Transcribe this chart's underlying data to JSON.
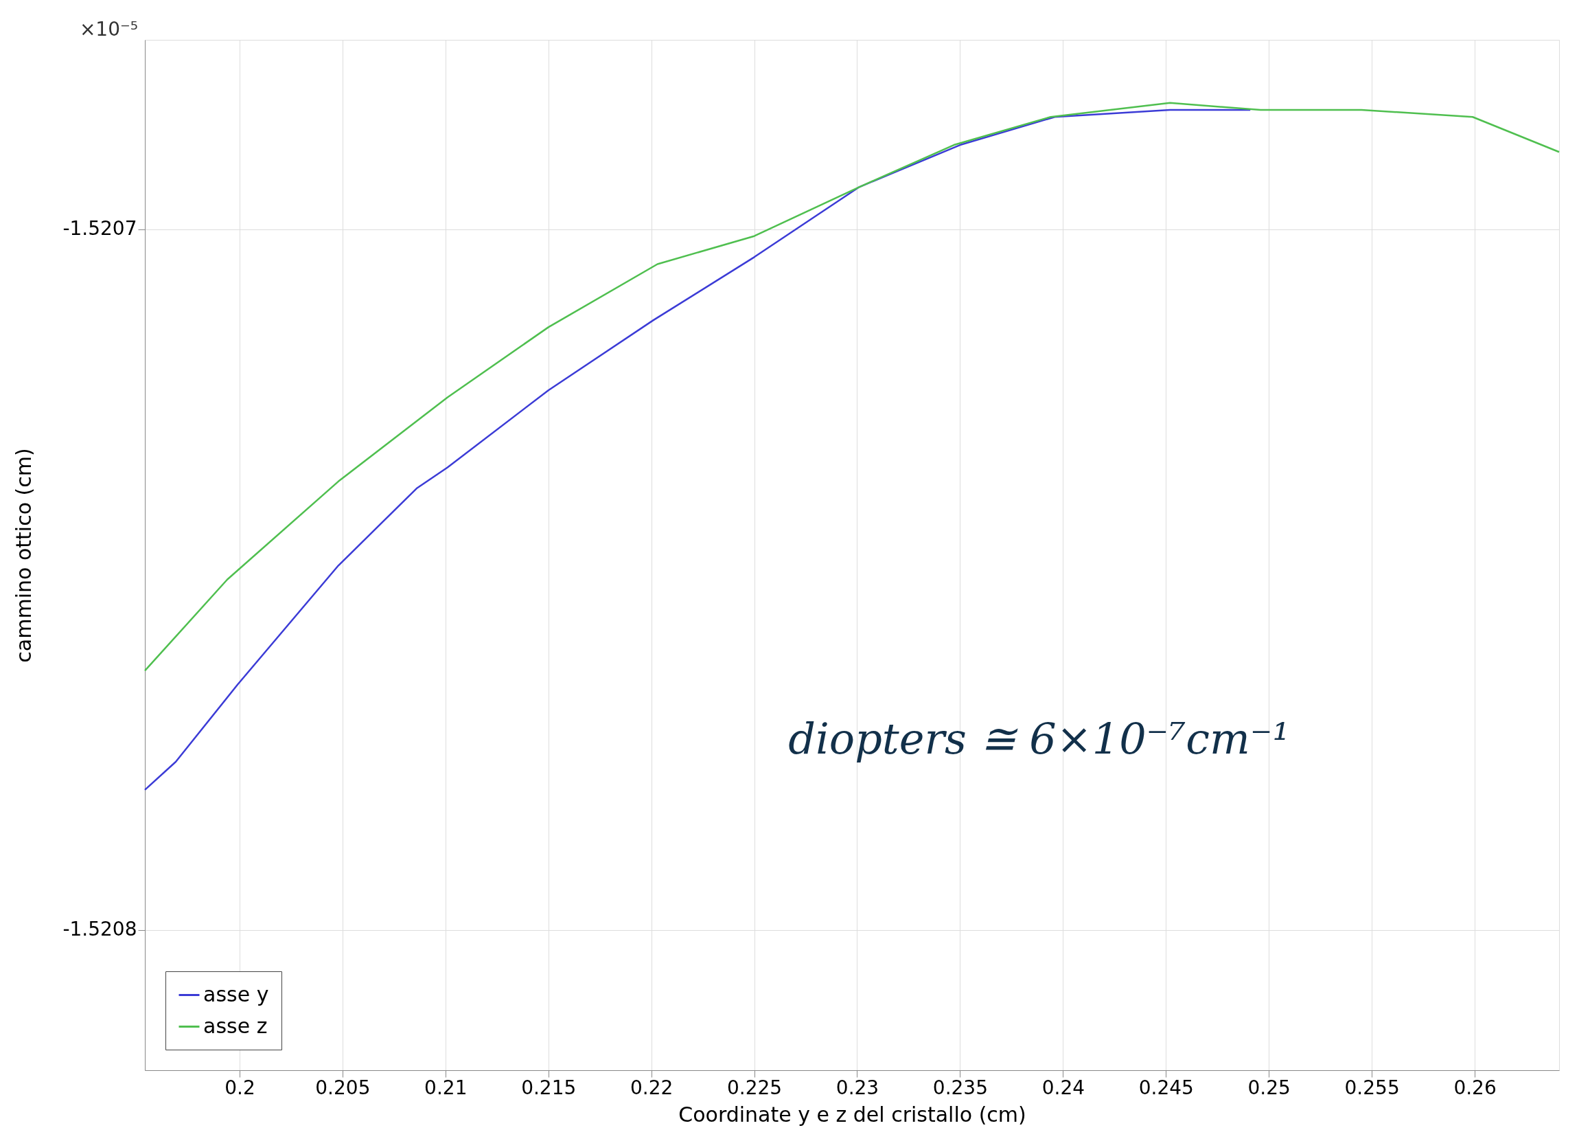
{
  "chart_data": {
    "type": "line",
    "xlabel": "Coordinate y e z del cristallo (cm)",
    "ylabel": "cammino ottico (cm)",
    "annotations": [
      "×10⁻⁵",
      "diopters ≅ 6×10⁻⁷cm⁻¹"
    ],
    "xlim": [
      0.1954,
      0.2641
    ],
    "xticks": [
      0.2,
      0.205,
      0.21,
      0.215,
      0.22,
      0.225,
      0.23,
      0.235,
      0.24,
      0.245,
      0.25,
      0.255,
      0.26
    ],
    "ylim": [
      -1.52082,
      -1.520673
    ],
    "yticks": [
      -1.5207,
      -1.5208
    ],
    "grid": true,
    "legend": "bottom left",
    "marker": "none",
    "line_style": "solid",
    "series": [
      {
        "name": "asse y",
        "color": "#3b3bd6",
        "x": [
          0.1954,
          0.1969,
          0.1999,
          0.2048,
          0.2086,
          0.2101,
          0.215,
          0.2201,
          0.225,
          0.2301,
          0.235,
          0.2396,
          0.2452,
          0.2491
        ],
        "values": [
          -1.52078,
          -1.520776,
          -1.520765,
          -1.520748,
          -1.520737,
          -1.520734,
          -1.520723,
          -1.520713,
          -1.520704,
          -1.520694,
          -1.520688,
          -1.520684,
          -1.520683,
          -1.520683
        ]
      },
      {
        "name": "asse z",
        "color": "#4fbf4f",
        "x": [
          0.1954,
          0.1994,
          0.2048,
          0.2101,
          0.215,
          0.2203,
          0.225,
          0.2301,
          0.2347,
          0.2394,
          0.2452,
          0.2496,
          0.2545,
          0.2599,
          0.2641
        ],
        "values": [
          -1.520763,
          -1.52075,
          -1.520736,
          -1.520724,
          -1.520714,
          -1.520705,
          -1.520701,
          -1.520694,
          -1.520688,
          -1.520684,
          -1.520682,
          -1.520683,
          -1.520683,
          -1.520684,
          -1.520689
        ]
      }
    ]
  }
}
